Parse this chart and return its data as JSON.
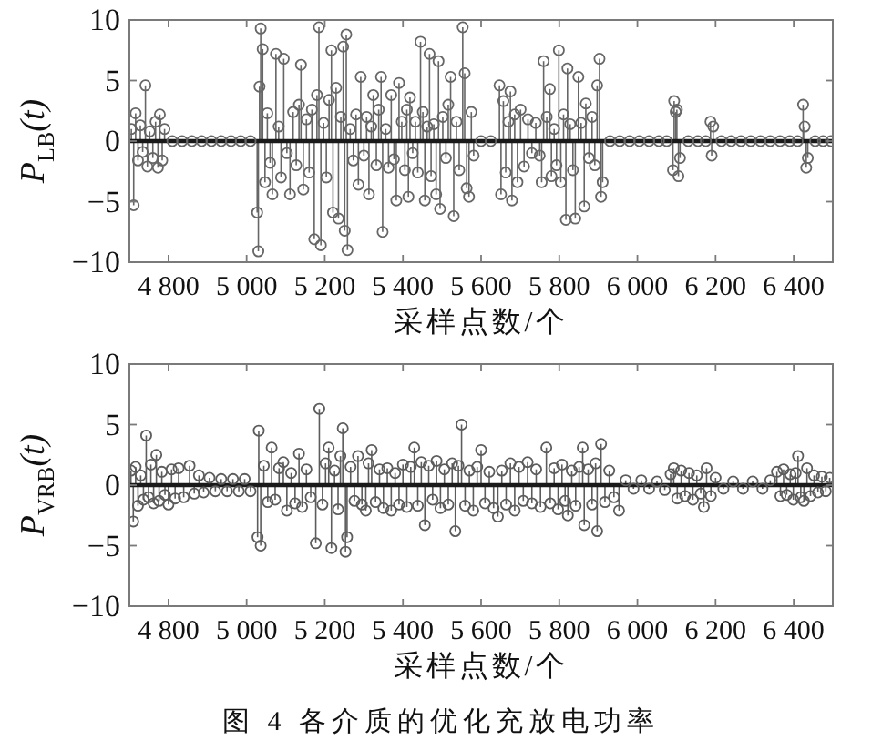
{
  "chart_data": [
    {
      "type": "lollipop",
      "ylabel": "P$_{LB}$(t)",
      "xlabel": "采样点数/个",
      "color": "#666666",
      "marker": "circle",
      "xlim": [
        4700,
        6500
      ],
      "xticks": [
        {
          "value": 4800,
          "label": "4 800"
        },
        {
          "value": 5000,
          "label": "5 000"
        },
        {
          "value": 5200,
          "label": "5 200"
        },
        {
          "value": 5400,
          "label": "5 400"
        },
        {
          "value": 5600,
          "label": "5 600"
        },
        {
          "value": 5800,
          "label": "5 800"
        },
        {
          "value": 6000,
          "label": "6 000"
        },
        {
          "value": 6200,
          "label": "6 200"
        },
        {
          "value": 6400,
          "label": "6 400"
        }
      ],
      "ylim": [
        -10,
        10
      ],
      "yticks": [
        -10,
        -5,
        0,
        5,
        10
      ],
      "ref_lines": [
        {
          "axis": "y",
          "value": 0,
          "color": "#1a1a1a"
        }
      ],
      "x": [
        4705,
        4711,
        4716,
        4722,
        4728,
        4734,
        4741,
        4746,
        4752,
        4760,
        4767,
        4773,
        4778,
        4784,
        4790,
        4810,
        4835,
        4860,
        4885,
        4910,
        4935,
        4960,
        4985,
        5010,
        5027,
        5030,
        5033,
        5036,
        5041,
        5047,
        5053,
        5060,
        5066,
        5075,
        5082,
        5088,
        5095,
        5103,
        5111,
        5119,
        5127,
        5134,
        5139,
        5145,
        5153,
        5160,
        5167,
        5173,
        5180,
        5185,
        5190,
        5197,
        5204,
        5211,
        5217,
        5221,
        5229,
        5235,
        5241,
        5247,
        5251,
        5255,
        5258,
        5265,
        5273,
        5280,
        5286,
        5292,
        5300,
        5307,
        5313,
        5319,
        5324,
        5332,
        5338,
        5344,
        5348,
        5356,
        5363,
        5370,
        5377,
        5383,
        5390,
        5397,
        5405,
        5410,
        5414,
        5418,
        5425,
        5432,
        5438,
        5445,
        5451,
        5456,
        5462,
        5468,
        5472,
        5479,
        5485,
        5491,
        5495,
        5502,
        5510,
        5516,
        5522,
        5530,
        5537,
        5544,
        5553,
        5558,
        5563,
        5569,
        5575,
        5581,
        5600,
        5625,
        5647,
        5651,
        5657,
        5663,
        5670,
        5675,
        5679,
        5686,
        5693,
        5701,
        5710,
        5720,
        5730,
        5740,
        5750,
        5755,
        5760,
        5768,
        5776,
        5780,
        5787,
        5793,
        5799,
        5804,
        5811,
        5817,
        5821,
        5828,
        5835,
        5841,
        5849,
        5856,
        5864,
        5868,
        5876,
        5884,
        5891,
        5897,
        5903,
        5907,
        5911,
        5930,
        5955,
        5980,
        6005,
        6030,
        6055,
        6075,
        6091,
        6094,
        6098,
        6101,
        6105,
        6109,
        6130,
        6155,
        6175,
        6187,
        6190,
        6194,
        6215,
        6240,
        6265,
        6290,
        6315,
        6340,
        6365,
        6390,
        6410,
        6424,
        6428,
        6432,
        6436,
        6455,
        6475,
        6495
      ],
      "values": [
        1.0,
        -5.3,
        2.3,
        -1.6,
        1.3,
        -0.9,
        4.6,
        -2.1,
        0.8,
        -1.4,
        1.6,
        -2.2,
        2.2,
        -1.6,
        1.0,
        0,
        0,
        0,
        0,
        0,
        0,
        0,
        0,
        0,
        -5.9,
        -9.1,
        4.5,
        9.3,
        7.6,
        -3.4,
        2.3,
        -1.8,
        -4.4,
        7.2,
        1.2,
        -3.0,
        6.8,
        -1.0,
        -4.4,
        2.4,
        -2.0,
        3.0,
        6.3,
        -4.0,
        1.8,
        -2.6,
        2.6,
        -8.1,
        3.8,
        9.4,
        -8.6,
        1.5,
        -3.0,
        3.4,
        7.5,
        -5.9,
        4.4,
        -6.4,
        2.0,
        7.8,
        -7.4,
        8.8,
        -9.0,
        1.0,
        -1.6,
        2.2,
        -3.6,
        5.3,
        -1.2,
        2.0,
        -4.4,
        1.2,
        3.8,
        -2.0,
        2.6,
        5.3,
        -7.5,
        1.0,
        -2.2,
        3.8,
        -1.5,
        -4.9,
        4.8,
        1.6,
        -2.4,
        2.6,
        -4.6,
        3.6,
        -1.0,
        1.6,
        -2.6,
        8.2,
        2.4,
        -4.9,
        1.2,
        7.2,
        -2.9,
        1.4,
        -4.4,
        6.6,
        -5.6,
        2.0,
        -1.4,
        3.0,
        5.3,
        -6.2,
        1.6,
        -2.4,
        9.4,
        5.6,
        -3.9,
        -4.6,
        2.4,
        -1.2,
        0,
        0,
        4.6,
        -4.4,
        3.3,
        -2.6,
        1.6,
        4.1,
        -4.9,
        2.2,
        -3.4,
        2.6,
        -2.1,
        1.8,
        -1.0,
        1.5,
        -1.2,
        -3.4,
        6.6,
        2.0,
        4.3,
        -2.9,
        1.0,
        -2.0,
        7.5,
        -3.4,
        2.2,
        -6.5,
        6.0,
        1.4,
        -2.4,
        -6.4,
        5.3,
        1.5,
        -5.4,
        3.1,
        -1.4,
        2.0,
        -2.0,
        4.6,
        6.8,
        -4.6,
        -3.4,
        0,
        0,
        0,
        0,
        0,
        0,
        0,
        -2.4,
        3.3,
        2.4,
        2.6,
        -2.9,
        -1.4,
        0,
        0,
        0,
        1.6,
        -1.2,
        1.2,
        0,
        0,
        0,
        0,
        0,
        0,
        0,
        0,
        0,
        3.0,
        1.2,
        -2.2,
        -1.4,
        0,
        0,
        0
      ]
    },
    {
      "type": "lollipop",
      "ylabel": "P$_{VRB}$(t)",
      "xlabel": "采样点数/个",
      "color": "#5c5c5c",
      "marker": "circle",
      "xlim": [
        4700,
        6500
      ],
      "xticks": [
        {
          "value": 4800,
          "label": "4 800"
        },
        {
          "value": 5000,
          "label": "5 000"
        },
        {
          "value": 5200,
          "label": "5 200"
        },
        {
          "value": 5400,
          "label": "5 400"
        },
        {
          "value": 5600,
          "label": "5 600"
        },
        {
          "value": 5800,
          "label": "5 800"
        },
        {
          "value": 6000,
          "label": "6 000"
        },
        {
          "value": 6200,
          "label": "6 200"
        },
        {
          "value": 6400,
          "label": "6 400"
        }
      ],
      "ylim": [
        -10,
        10
      ],
      "yticks": [
        -10,
        -5,
        0,
        5,
        10
      ],
      "ref_lines": [
        {
          "axis": "y",
          "value": 0,
          "color": "#1a1a1a"
        }
      ],
      "annotations": [
        "图 4 各介质的优化充放电功率"
      ],
      "x": [
        4704,
        4710,
        4716,
        4722,
        4729,
        4736,
        4743,
        4749,
        4755,
        4762,
        4769,
        4776,
        4783,
        4791,
        4800,
        4808,
        4817,
        4826,
        4839,
        4854,
        4866,
        4878,
        4890,
        4905,
        4920,
        4935,
        4950,
        4965,
        4980,
        4995,
        5010,
        5028,
        5031,
        5036,
        5044,
        5054,
        5064,
        5073,
        5083,
        5094,
        5103,
        5114,
        5124,
        5134,
        5142,
        5153,
        5164,
        5177,
        5186,
        5194,
        5202,
        5210,
        5217,
        5225,
        5234,
        5240,
        5246,
        5253,
        5257,
        5266,
        5276,
        5285,
        5295,
        5305,
        5312,
        5320,
        5330,
        5340,
        5350,
        5360,
        5370,
        5380,
        5390,
        5400,
        5410,
        5420,
        5429,
        5438,
        5447,
        5456,
        5466,
        5476,
        5486,
        5496,
        5506,
        5516,
        5526,
        5534,
        5542,
        5550,
        5559,
        5570,
        5580,
        5590,
        5600,
        5610,
        5621,
        5632,
        5643,
        5653,
        5664,
        5675,
        5686,
        5697,
        5708,
        5719,
        5730,
        5741,
        5752,
        5767,
        5777,
        5787,
        5797,
        5807,
        5815,
        5822,
        5832,
        5842,
        5851,
        5860,
        5864,
        5874,
        5884,
        5893,
        5897,
        5907,
        5917,
        5928,
        5940,
        5953,
        5970,
        5990,
        6010,
        6030,
        6050,
        6070,
        6085,
        6093,
        6102,
        6112,
        6122,
        6132,
        6142,
        6152,
        6162,
        6170,
        6177,
        6188,
        6200,
        6220,
        6245,
        6270,
        6295,
        6320,
        6340,
        6357,
        6366,
        6374,
        6382,
        6391,
        6399,
        6405,
        6411,
        6418,
        6426,
        6434,
        6443,
        6452,
        6462,
        6472,
        6482,
        6492
      ],
      "values": [
        1.2,
        -3.0,
        1.5,
        -1.7,
        0.8,
        -1.2,
        4.1,
        -1.0,
        1.7,
        -1.5,
        2.5,
        -1.3,
        1.1,
        -0.8,
        -1.6,
        1.3,
        -1.1,
        1.4,
        -1.0,
        1.6,
        -0.7,
        0.8,
        -0.6,
        0.6,
        -0.5,
        0.5,
        -0.5,
        0.5,
        -0.5,
        0.5,
        -0.5,
        -4.3,
        4.5,
        -5.0,
        1.6,
        -1.4,
        3.1,
        -1.2,
        1.4,
        1.9,
        -2.1,
        1.0,
        -1.5,
        2.6,
        -1.8,
        1.3,
        -1.0,
        -4.8,
        6.3,
        -1.6,
        1.8,
        3.1,
        -5.2,
        1.2,
        -2.0,
        2.4,
        4.7,
        -5.5,
        -4.3,
        1.5,
        -1.3,
        2.4,
        -1.6,
        -2.1,
        1.8,
        2.9,
        -1.4,
        1.3,
        -1.9,
        1.4,
        -2.1,
        1.0,
        -1.6,
        1.7,
        -1.8,
        1.5,
        3.1,
        -1.7,
        1.9,
        -3.3,
        1.6,
        -1.2,
        2.0,
        -1.9,
        1.3,
        -1.6,
        1.8,
        -3.8,
        1.6,
        5.0,
        -1.7,
        1.2,
        -2.1,
        1.5,
        2.9,
        -1.5,
        1.1,
        -1.9,
        -2.6,
        1.2,
        -1.6,
        1.8,
        -2.1,
        1.5,
        -1.3,
        1.9,
        -1.5,
        1.3,
        -1.8,
        3.1,
        -1.5,
        1.4,
        -2.0,
        1.7,
        -1.3,
        -2.5,
        1.2,
        -1.7,
        1.5,
        3.1,
        -3.3,
        1.3,
        -1.6,
        1.8,
        -3.8,
        3.4,
        -1.4,
        1.2,
        -1.0,
        -2.1,
        0.4,
        -0.3,
        0.4,
        -0.3,
        0.3,
        -0.4,
        0.9,
        1.4,
        -1.1,
        1.2,
        -0.9,
        1.0,
        -1.2,
        0.8,
        -0.7,
        -1.8,
        1.4,
        -0.9,
        0.6,
        -0.3,
        0.3,
        -0.3,
        0.3,
        -0.3,
        0.4,
        1.1,
        -0.9,
        1.3,
        -0.8,
        0.9,
        -1.2,
        1.0,
        2.4,
        -1.0,
        -1.3,
        1.4,
        -0.9,
        0.8,
        -0.6,
        0.7,
        -0.5,
        0.6
      ]
    }
  ]
}
